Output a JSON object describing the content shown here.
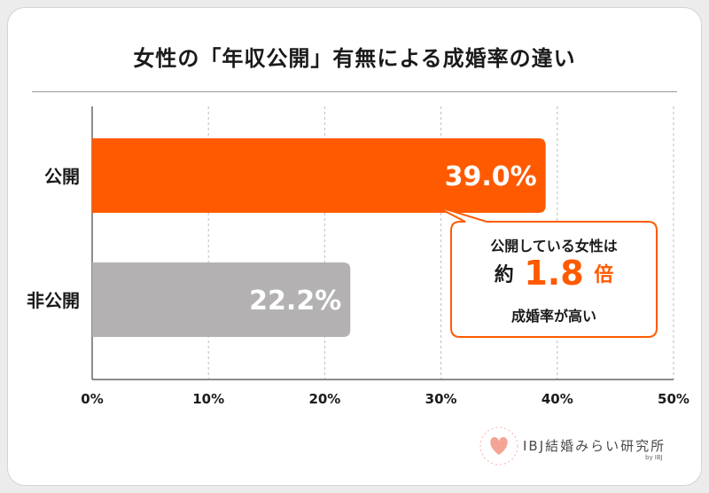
{
  "chart_data": {
    "type": "bar",
    "orientation": "horizontal",
    "title": "女性の「年収公開」有無による成婚率の違い",
    "categories": [
      "公開",
      "非公開"
    ],
    "values": [
      39.0,
      22.2
    ],
    "value_labels": [
      "39.0%",
      "22.2%"
    ],
    "bar_colors": [
      "#ff5a00",
      "#b3b1b2"
    ],
    "xlim": [
      0,
      50
    ],
    "xticks": [
      0,
      10,
      20,
      30,
      40,
      50
    ],
    "xtick_labels": [
      "0%",
      "10%",
      "20%",
      "30%",
      "40%",
      "50%"
    ],
    "grid": "vertical-dashed",
    "annotation": {
      "line1": "公開している女性は",
      "line2_prefix": "約",
      "line2_number": "1.8",
      "line2_suffix": "倍",
      "line3": "成婚率が高い",
      "color": "#ff5a00"
    }
  },
  "logo": {
    "text": "IBJ結婚みらい研究所",
    "sub": "by IBJ",
    "icon": "heart-icon"
  }
}
